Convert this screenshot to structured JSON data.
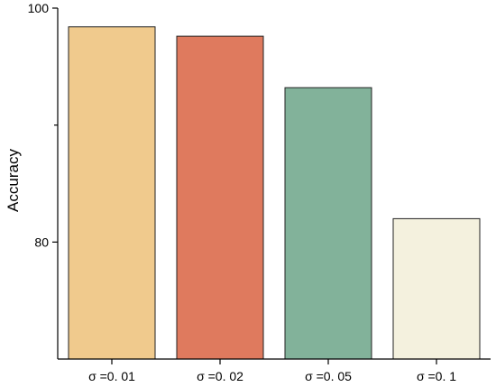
{
  "chart_data": {
    "type": "bar",
    "title": "",
    "xlabel": "",
    "ylabel": "Accuracy",
    "categories": [
      "σ =0. 01",
      "σ =0. 02",
      "σ =0. 05",
      "σ =0. 1"
    ],
    "values": [
      98.4,
      97.6,
      93.2,
      82.0
    ],
    "colors": [
      "#F0CA8D",
      "#DF7A5E",
      "#82B29A",
      "#F4F1DE"
    ],
    "ylim": [
      70,
      100
    ],
    "yticks": [
      80,
      100
    ],
    "ytick_labels": [
      "80",
      "100"
    ],
    "grid": false,
    "legend": "none"
  }
}
